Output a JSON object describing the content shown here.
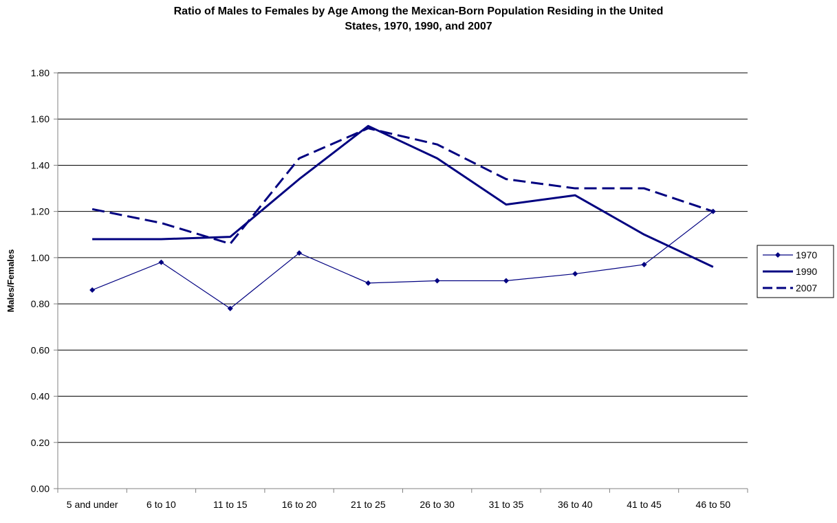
{
  "chart_data": {
    "type": "line",
    "title_line1": "Ratio of Males to Females by Age Among the Mexican-Born Population Residing in the United",
    "title_line2": "States, 1970, 1990, and 2007",
    "xlabel": "",
    "ylabel": "Males/Females",
    "ylim": [
      0,
      1.8
    ],
    "yticks": [
      "0.00",
      "0.20",
      "0.40",
      "0.60",
      "0.80",
      "1.00",
      "1.20",
      "1.40",
      "1.60",
      "1.80"
    ],
    "grid": true,
    "legend_position": "right",
    "categories": [
      "5 and under",
      "6 to 10",
      "11 to 15",
      "16 to 20",
      "21 to 25",
      "26 to 30",
      "31 to 35",
      "36 to 40",
      "41 to 45",
      "46 to 50"
    ],
    "series": [
      {
        "name": "1970",
        "style": "thin-diamond",
        "values": [
          0.86,
          0.98,
          0.78,
          1.02,
          0.89,
          0.9,
          0.9,
          0.93,
          0.97,
          1.2
        ]
      },
      {
        "name": "1990",
        "style": "thick-solid",
        "values": [
          1.08,
          1.08,
          1.09,
          1.34,
          1.57,
          1.43,
          1.23,
          1.27,
          1.1,
          0.96
        ]
      },
      {
        "name": "2007",
        "style": "thick-dashed",
        "values": [
          1.21,
          1.15,
          1.06,
          1.43,
          1.56,
          1.49,
          1.34,
          1.3,
          1.3,
          1.2
        ]
      }
    ],
    "colors": {
      "line": "#000080",
      "grid": "#000000",
      "axis": "#808080"
    }
  }
}
